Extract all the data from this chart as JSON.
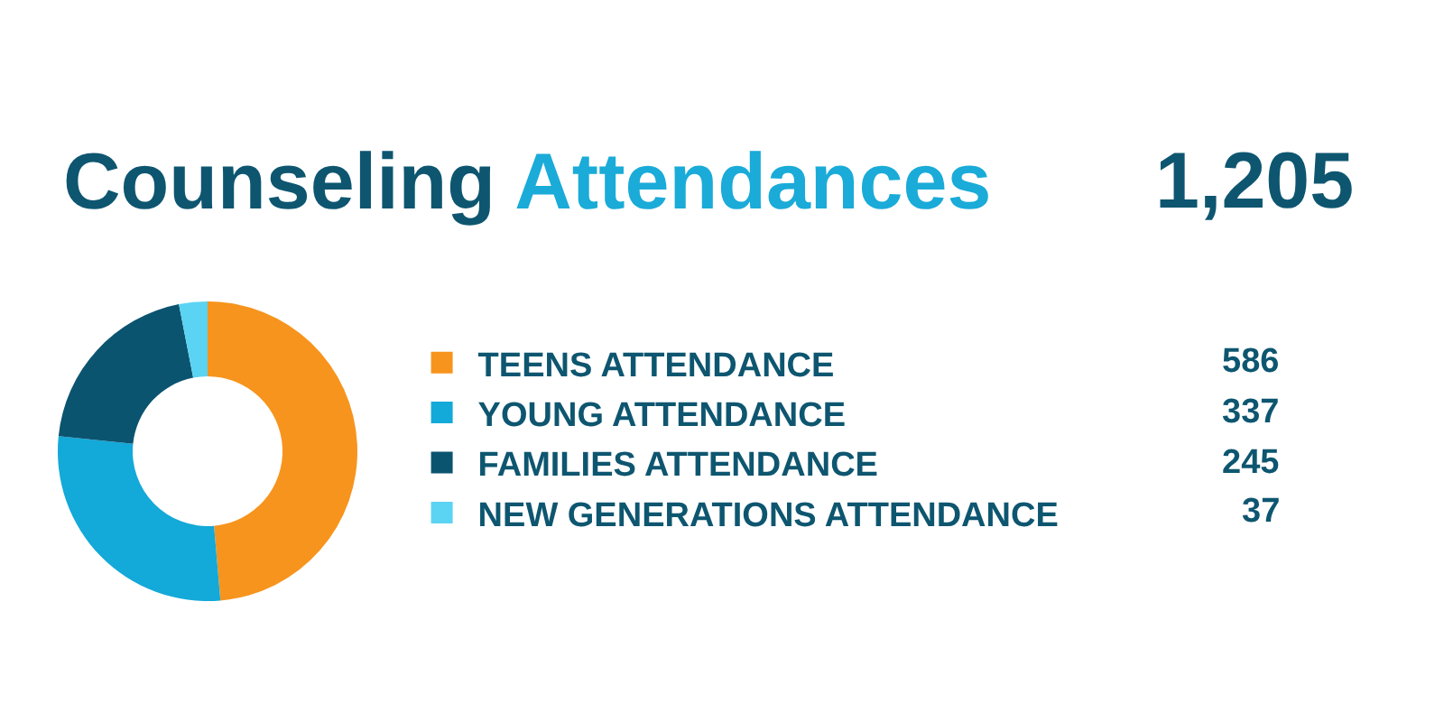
{
  "chart_data": {
    "type": "donut",
    "title": "Counseling Attendances",
    "annotations": [
      "1,205"
    ],
    "categories": [
      "TEENS ATTENDANCE",
      "YOUNG ATTENDANCE",
      "FAMILIES ATTENDANCE",
      "NEW GENERATIONS ATTENDANCE"
    ],
    "values": [
      586,
      337,
      245,
      37
    ],
    "colors": [
      "#f7941d",
      "#13a9d8",
      "#0b5470",
      "#5bd3f3"
    ],
    "data_labels": true,
    "legend": "right"
  }
}
